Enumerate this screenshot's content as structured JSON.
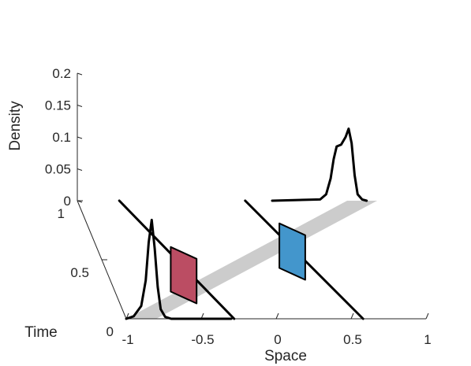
{
  "chart_data": {
    "type": "line",
    "projection": "3d",
    "axes": {
      "x": {
        "label": "Space",
        "lim": [
          -1,
          1
        ],
        "ticks": [
          -1,
          -0.5,
          0,
          0.5,
          1
        ],
        "tick_labels": [
          "-1",
          "-0.5",
          "0",
          "0.5",
          "1"
        ]
      },
      "y": {
        "label": "Time",
        "lim": [
          0,
          1
        ],
        "ticks": [
          0,
          0.5,
          1
        ],
        "tick_labels": [
          "0",
          "0.5",
          "1"
        ]
      },
      "z": {
        "label": "Density",
        "lim": [
          0,
          0.2
        ],
        "ticks": [
          0,
          0.05,
          0.1,
          0.15,
          0.2
        ],
        "tick_labels": [
          "0",
          "0.05",
          "0.1",
          "0.15",
          "0.2"
        ]
      }
    },
    "grid": false,
    "surface": {
      "description": "gray band along the diagonal of the space-time plane",
      "color": "#cccccc",
      "corners": [
        [
          -1,
          0
        ],
        [
          -0.8,
          0
        ],
        [
          1,
          1
        ],
        [
          0.8,
          1
        ]
      ]
    },
    "density_curves": [
      {
        "time": 0,
        "color": "#000000",
        "points": [
          [
            -1,
            0
          ],
          [
            -0.95,
            0.004
          ],
          [
            -0.9,
            0.02
          ],
          [
            -0.87,
            0.06
          ],
          [
            -0.85,
            0.12
          ],
          [
            -0.83,
            0.155
          ],
          [
            -0.81,
            0.11
          ],
          [
            -0.79,
            0.05
          ],
          [
            -0.77,
            0.015
          ],
          [
            -0.74,
            0.003
          ],
          [
            -0.7,
            0
          ],
          [
            -0.3,
            0
          ]
        ]
      },
      {
        "time": 1,
        "color": "#000000",
        "points": [
          [
            0.3,
            0
          ],
          [
            0.62,
            0.002
          ],
          [
            0.66,
            0.01
          ],
          [
            0.69,
            0.035
          ],
          [
            0.71,
            0.065
          ],
          [
            0.73,
            0.085
          ],
          [
            0.76,
            0.088
          ],
          [
            0.79,
            0.1
          ],
          [
            0.81,
            0.113
          ],
          [
            0.83,
            0.09
          ],
          [
            0.85,
            0.04
          ],
          [
            0.87,
            0.01
          ],
          [
            0.9,
            0.002
          ],
          [
            0.93,
            0
          ]
        ]
      }
    ],
    "trajectories": [
      {
        "color": "#000000",
        "points": [
          [
            -0.72,
            1
          ],
          [
            -0.28,
            0
          ]
        ]
      },
      {
        "color": "#000000",
        "points": [
          [
            0.12,
            1
          ],
          [
            0.58,
            0
          ]
        ]
      }
    ],
    "markers": [
      {
        "color": "#bb4d63",
        "space": -0.47,
        "time": 0.45,
        "density_range": [
          0,
          0.02
        ]
      },
      {
        "color": "#4396cc",
        "space": 0.32,
        "time": 0.65,
        "density_range": [
          0,
          0.02
        ]
      }
    ]
  }
}
